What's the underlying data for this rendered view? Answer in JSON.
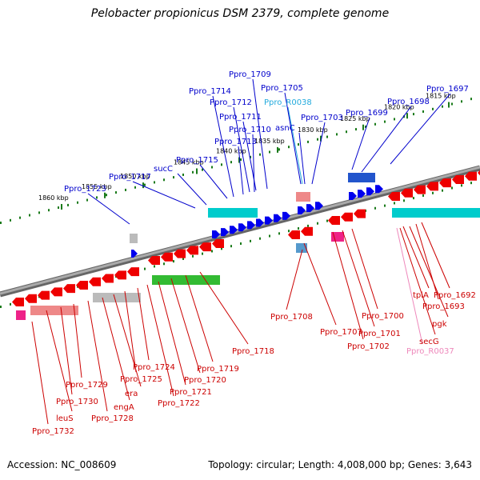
{
  "title": "Pelobacter propionicus DSM 2379, complete genome",
  "accession_label": "Accession: NC_008609",
  "summary_label": "Topology: circular; Length: 4,008,000 bp; Genes: 3,643",
  "colors": {
    "forward_label": "#0000cc",
    "reverse_label": "#cc0000",
    "rrna_label": "#22aadd",
    "rrna_label_reverse": "#ee88bb",
    "backbone": "#888888",
    "tick": "#1a7a1a",
    "gene_forward": "#0000ee",
    "gene_reverse": "#ee0000"
  },
  "scale_labels": [
    "1815 kbp",
    "1820 kbp",
    "1825 kbp",
    "1830 kbp",
    "1835 kbp",
    "1840 kbp",
    "1845 kbp",
    "1850 kbp",
    "1855 kbp",
    "1860 kbp"
  ],
  "forward_genes": [
    "Ppro_1697",
    "Ppro_1698",
    "Ppro_1699",
    "Ppro_1703",
    "asnC",
    "Ppro_R0038",
    "Ppro_1705",
    "Ppro_1709",
    "Ppro_1714",
    "Ppro_1712",
    "Ppro_1711",
    "Ppro_1710",
    "Ppro_1713",
    "Ppro_1715",
    "sucC",
    "Ppro_1717",
    "Ppro_1723"
  ],
  "reverse_genes": [
    "Ppro_1692",
    "Ppro_1693",
    "tpiA",
    "pgk",
    "secG",
    "Ppro_R0037",
    "Ppro_1700",
    "Ppro_1701",
    "Ppro_1702",
    "Ppro_1707",
    "Ppro_1708",
    "Ppro_1718",
    "Ppro_1719",
    "Ppro_1720",
    "Ppro_1721",
    "Ppro_1722",
    "Ppro_1724",
    "Ppro_1725",
    "era",
    "engA",
    "Ppro_1728",
    "Ppro_1729",
    "Ppro_1730",
    "leuS",
    "Ppro_1732"
  ]
}
